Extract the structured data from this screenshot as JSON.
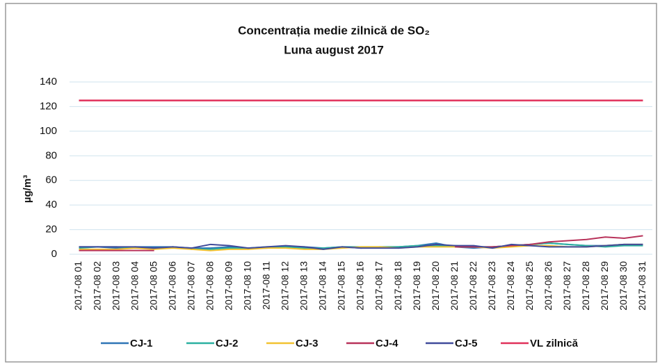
{
  "chart_data": {
    "type": "line",
    "title": "Concentrația medie zilnică de SO₂",
    "subtitle": "Luna august 2017",
    "y_label": "µg/m³",
    "categories": [
      "2017-08 01",
      "2017-08 02",
      "2017-08 03",
      "2017-08 04",
      "2017-08 05",
      "2017-08 06",
      "2017-08 07",
      "2017-08 08",
      "2017-08 09",
      "2017-08 10",
      "2017-08 11",
      "2017-08 12",
      "2017-08 13",
      "2017-08 14",
      "2017-08 15",
      "2017-08 16",
      "2017-08 17",
      "2017-08 18",
      "2017-08 19",
      "2017-08 20",
      "2017-08 21",
      "2017-08 22",
      "2017-08 23",
      "2017-08 24",
      "2017-08 25",
      "2017-08 26",
      "2017-08 27",
      "2017-08 28",
      "2017-08 29",
      "2017-08 30",
      "2017-08 31"
    ],
    "series": [
      {
        "name": "CJ-1",
        "color": "#2e75b6",
        "values": [
          6,
          6,
          5,
          6,
          6,
          6,
          5,
          5,
          6,
          5,
          5,
          6,
          6,
          5,
          6,
          5,
          6,
          6,
          7,
          9,
          6,
          5,
          6,
          7,
          8,
          9,
          8,
          7,
          7,
          8,
          8
        ]
      },
      {
        "name": "CJ-2",
        "color": "#2ab0a0",
        "values": [
          5,
          6,
          6,
          5,
          5,
          6,
          4,
          4,
          5,
          5,
          6,
          6,
          5,
          5,
          6,
          6,
          6,
          6,
          7,
          7,
          7,
          6,
          6,
          7,
          8,
          9,
          8,
          7,
          6,
          7,
          7
        ]
      },
      {
        "name": "CJ-3",
        "color": "#f2c230",
        "values": [
          4,
          4,
          4,
          5,
          4,
          5,
          4,
          3,
          4,
          4,
          5,
          5,
          4,
          4,
          5,
          6,
          6,
          5,
          6,
          6,
          6,
          6,
          5,
          6,
          7,
          7,
          6,
          6,
          7,
          8,
          8
        ]
      },
      {
        "name": "CJ-4",
        "color": "#b8325a",
        "values": [
          3,
          3,
          3,
          3,
          3,
          null,
          null,
          null,
          null,
          null,
          null,
          null,
          null,
          null,
          null,
          null,
          null,
          null,
          null,
          null,
          6,
          6,
          6,
          7,
          8,
          10,
          11,
          12,
          14,
          13,
          15
        ]
      },
      {
        "name": "CJ-5",
        "color": "#3f4a9a",
        "values": [
          6,
          6,
          6,
          6,
          5,
          6,
          5,
          8,
          7,
          5,
          6,
          7,
          6,
          4,
          6,
          5,
          5,
          5,
          6,
          8,
          7,
          7,
          5,
          8,
          7,
          6,
          6,
          6,
          7,
          8,
          8
        ]
      },
      {
        "name": "VL zilnică",
        "color": "#e0305a",
        "values": [
          125,
          125,
          125,
          125,
          125,
          125,
          125,
          125,
          125,
          125,
          125,
          125,
          125,
          125,
          125,
          125,
          125,
          125,
          125,
          125,
          125,
          125,
          125,
          125,
          125,
          125,
          125,
          125,
          125,
          125,
          125
        ]
      }
    ],
    "ylim": [
      0,
      140
    ],
    "yticks": [
      0,
      20,
      40,
      60,
      80,
      100,
      120,
      140
    ],
    "grid": true
  }
}
